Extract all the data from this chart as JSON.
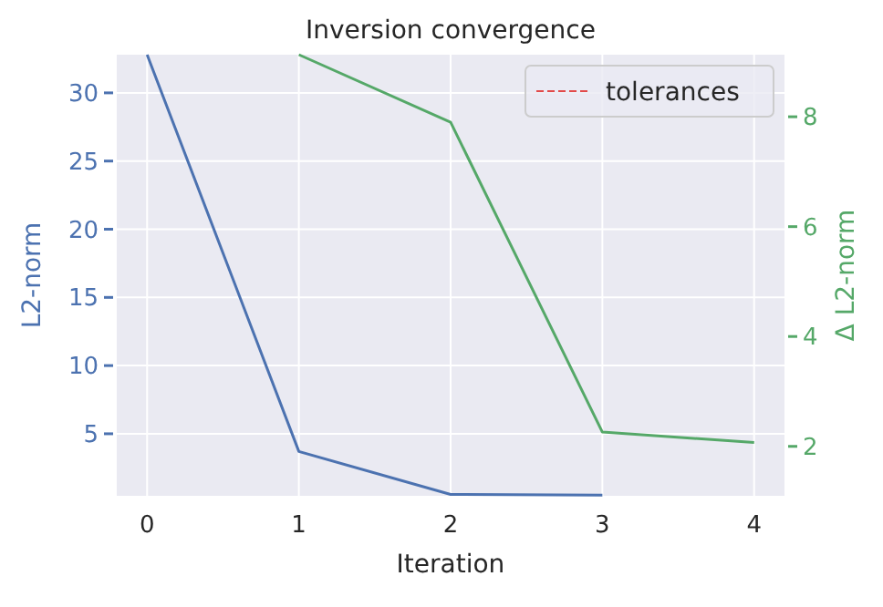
{
  "chart_data": {
    "type": "line",
    "title": "Inversion convergence",
    "xlabel": "Iteration",
    "ylabel": "L2-norm",
    "y2label": "Δ L2-norm",
    "x": [
      0,
      1,
      2,
      3,
      4
    ],
    "xlim": [
      -0.2,
      4.2
    ],
    "xticks": [
      0,
      1,
      2,
      3,
      4
    ],
    "ylim": [
      0.45,
      32.8
    ],
    "yticks": [
      5,
      10,
      15,
      20,
      25,
      30
    ],
    "y2lim": [
      1.1,
      9.13
    ],
    "y2ticks": [
      2,
      4,
      6,
      8
    ],
    "series": [
      {
        "color": "#4c72b0",
        "values": [
          32.8,
          3.7,
          0.55,
          0.5,
          null
        ]
      },
      {
        "color": "#55a868",
        "axis": "y2",
        "values": [
          null,
          9.13,
          7.9,
          2.26,
          2.07
        ]
      },
      {
        "name": "tolerances",
        "color": "#e24a4a",
        "line_style": "dashed",
        "values": [
          null,
          null,
          null,
          null,
          null
        ]
      }
    ],
    "grid": true,
    "legend": "top right"
  }
}
